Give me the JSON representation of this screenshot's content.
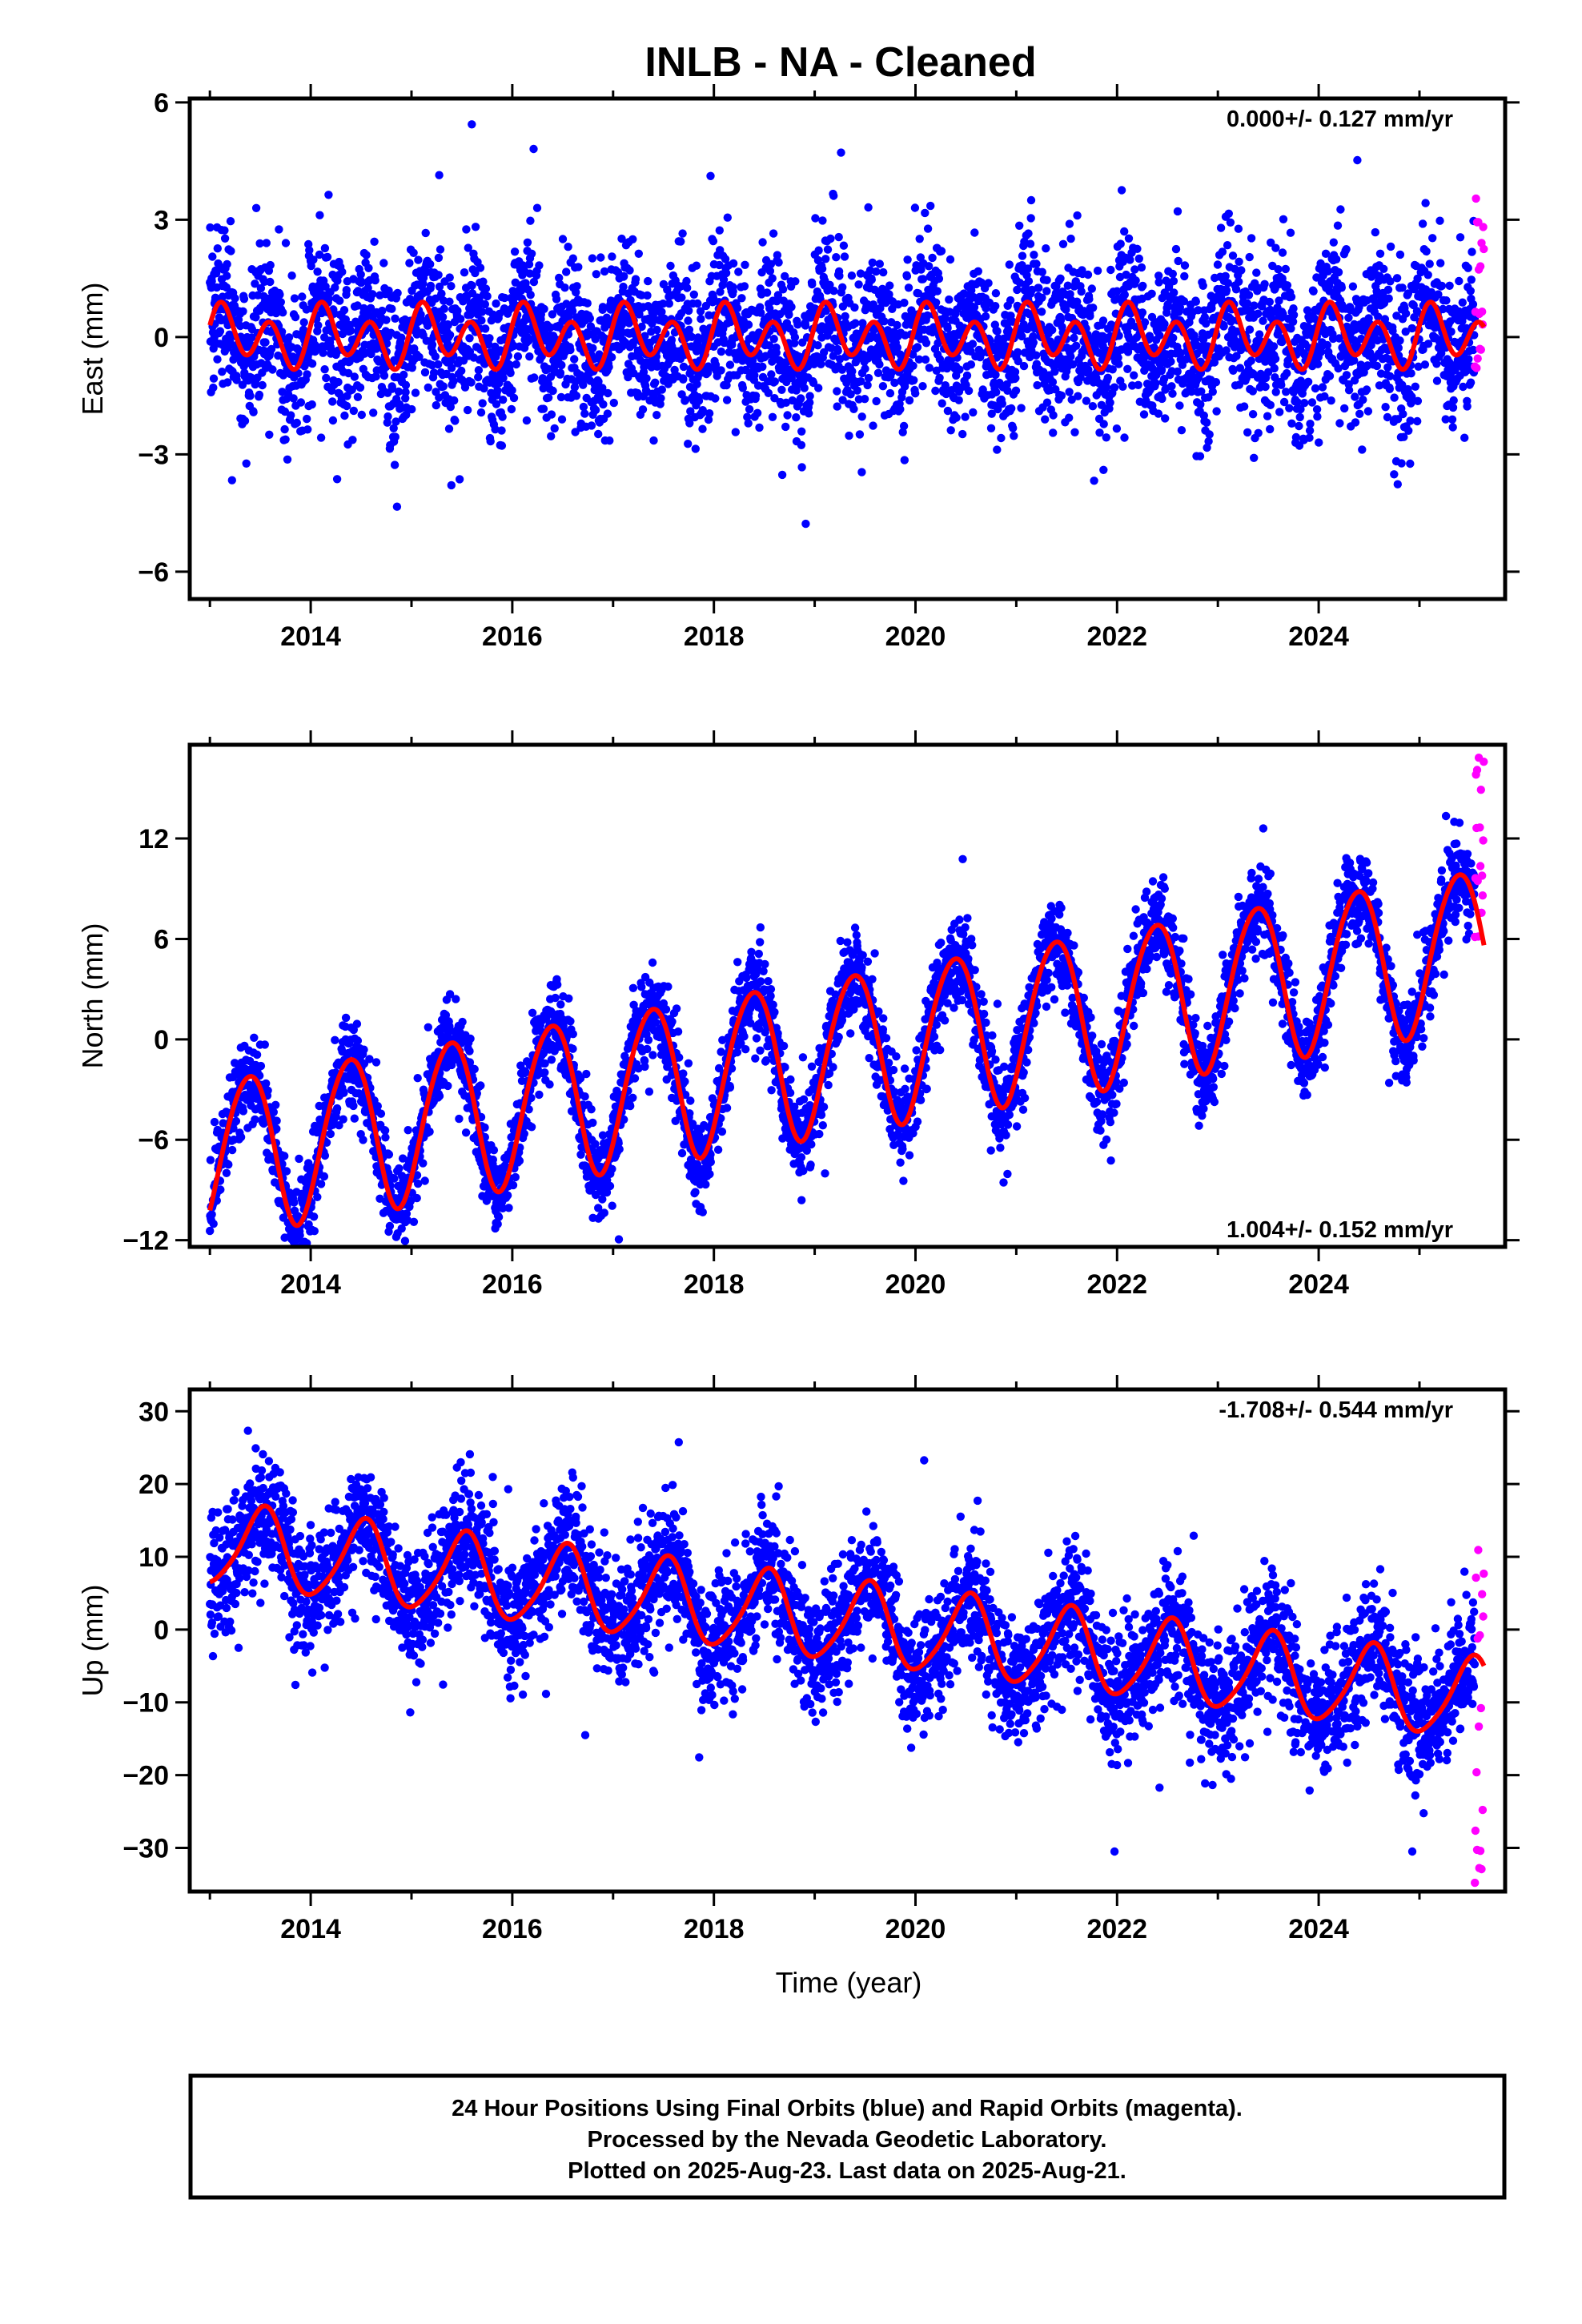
{
  "title": "INLB  - NA - Cleaned",
  "xlabel": "Time (year)",
  "footer": {
    "lines": [
      "24 Hour Positions Using Final Orbits (blue) and Rapid Orbits (magenta).",
      "Processed by the Nevada Geodetic Laboratory.",
      "Plotted on 2025-Aug-23. Last data on 2025-Aug-21."
    ]
  },
  "colors": {
    "final_orbits": "#0000ff",
    "rapid_orbits": "#ff00ff",
    "model_fit": "#ff0000",
    "axes": "#000000"
  },
  "chart_data": [
    {
      "type": "scatter",
      "panel": "east",
      "ylabel": "East (mm)",
      "rate_label": "0.000+/- 0.127 mm/yr",
      "xlim": [
        2012.8,
        2025.85
      ],
      "ylim": [
        -6.7,
        6.1
      ],
      "xticks": [
        2014,
        2016,
        2018,
        2020,
        2022,
        2024
      ],
      "yticks": [
        -6,
        -3,
        0,
        3,
        6
      ],
      "ytick_labels": [
        "−6",
        "−3",
        "0",
        "3",
        "6"
      ],
      "data_start": 2013.0,
      "rapid_start": 2025.55,
      "data_end": 2025.64,
      "model": {
        "trend_mm_per_yr": 0.0,
        "offset_at_2019": 0.0,
        "annual_sin": 0.3,
        "annual_cos": 0.1,
        "semiannual_sin": 0.6,
        "semiannual_cos": 0.2
      },
      "scatter_sd_mm": 1.0,
      "rapid_range": [
        -0.8,
        3.8
      ]
    },
    {
      "type": "scatter",
      "panel": "north",
      "ylabel": "North (mm)",
      "rate_label": "1.004+/- 0.152 mm/yr",
      "xlim": [
        2012.8,
        2025.85
      ],
      "ylim": [
        -12.4,
        17.6
      ],
      "xticks": [
        2014,
        2016,
        2018,
        2020,
        2022,
        2024
      ],
      "yticks": [
        -12,
        -6,
        0,
        6,
        12
      ],
      "ytick_labels": [
        "−12",
        "−6",
        "0",
        "6",
        "12"
      ],
      "data_start": 2013.0,
      "rapid_start": 2025.55,
      "data_end": 2025.64,
      "model": {
        "trend_mm_per_yr": 1.004,
        "offset_at_2019": -1.0,
        "annual_sin": 3.2,
        "annual_cos": -3.4,
        "semiannual_sin": 0.3,
        "semiannual_cos": 0.2
      },
      "scatter_sd_mm": 1.3,
      "rapid_range": [
        6.0,
        17.0
      ]
    },
    {
      "type": "scatter",
      "panel": "up",
      "ylabel": "Up (mm)",
      "rate_label": "-1.708+/- 0.544 mm/yr",
      "xlim": [
        2012.8,
        2025.85
      ],
      "ylim": [
        -36.0,
        33.0
      ],
      "xticks": [
        2014,
        2016,
        2018,
        2020,
        2022,
        2024
      ],
      "yticks": [
        -30,
        -20,
        -10,
        0,
        10,
        20,
        30
      ],
      "ytick_labels": [
        "−30",
        "−20",
        "−10",
        "0",
        "10",
        "20",
        "30"
      ],
      "data_start": 2013.0,
      "rapid_start": 2025.55,
      "data_end": 2025.64,
      "model": {
        "trend_mm_per_yr": -1.708,
        "offset_at_2019": 1.5,
        "annual_sin": -0.8,
        "annual_cos": -5.5,
        "semiannual_sin": 0.8,
        "semiannual_cos": 0.3
      },
      "scatter_sd_mm": 4.2,
      "rapid_range": [
        -35.0,
        14.5
      ]
    }
  ]
}
